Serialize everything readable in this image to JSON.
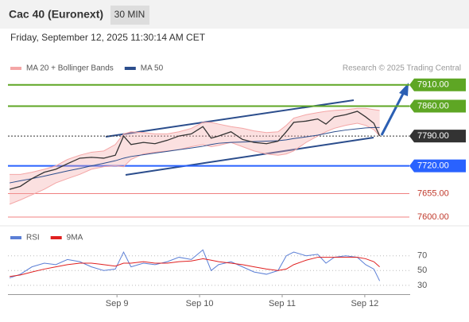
{
  "header": {
    "title": "Cac 40 (Euronext)",
    "interval": "30 MIN",
    "timestamp": "Friday, September 12, 2025 11:30:14 AM CET",
    "credit": "Research © 2025 Trading Central"
  },
  "chart_data": [
    {
      "type": "line",
      "x": [
        7.7,
        7.83,
        7.97,
        8.12,
        8.26,
        8.4,
        8.55,
        8.69,
        8.84,
        8.98,
        9.08,
        9.17,
        9.32,
        9.46,
        9.61,
        9.75,
        9.9,
        10.04,
        10.14,
        10.23,
        10.38,
        10.52,
        10.66,
        10.81,
        10.95,
        11.05,
        11.14,
        11.29,
        11.43,
        11.53,
        11.63,
        11.77,
        11.91,
        12.01,
        12.11,
        12.18
      ],
      "values": [
        7665,
        7672,
        7690,
        7705,
        7712,
        7725,
        7738,
        7740,
        7738,
        7745,
        7790,
        7770,
        7775,
        7772,
        7780,
        7790,
        7795,
        7812,
        7785,
        7790,
        7800,
        7782,
        7775,
        7772,
        7778,
        7800,
        7822,
        7825,
        7830,
        7818,
        7835,
        7840,
        7848,
        7835,
        7820,
        7790
      ],
      "color": "#333333",
      "series": [
        {
          "name": "MA 20 + Bollinger Bands",
          "color": "#f4a6a6",
          "upper": [
            7700,
            7700,
            7705,
            7712,
            7720,
            7735,
            7745,
            7752,
            7755,
            7770,
            7795,
            7800,
            7798,
            7795,
            7795,
            7800,
            7808,
            7822,
            7822,
            7818,
            7812,
            7808,
            7802,
            7798,
            7800,
            7815,
            7832,
            7840,
            7845,
            7848,
            7850,
            7852,
            7855,
            7855,
            7852,
            7850
          ],
          "lower": [
            7630,
            7640,
            7652,
            7665,
            7680,
            7690,
            7700,
            7712,
            7718,
            7720,
            7718,
            7735,
            7748,
            7752,
            7755,
            7758,
            7765,
            7770,
            7765,
            7768,
            7775,
            7765,
            7755,
            7748,
            7745,
            7748,
            7755,
            7775,
            7790,
            7800,
            7808,
            7815,
            7820,
            7815,
            7805,
            7790
          ]
        },
        {
          "name": "MA 50",
          "color": "#2b4d8c",
          "values": [
            7680,
            7685,
            7690,
            7696,
            7702,
            7708,
            7714,
            7720,
            7726,
            7732,
            7738,
            7742,
            7746,
            7750,
            7754,
            7758,
            7762,
            7766,
            7770,
            7773,
            7775,
            7776,
            7777,
            7778,
            7779,
            7781,
            7784,
            7788,
            7792,
            7796,
            7800,
            7804,
            7807,
            7809,
            7810,
            7810
          ]
        }
      ],
      "levels": [
        {
          "value": 7910,
          "label": "7910.00",
          "color": "#5ea624",
          "style": "box"
        },
        {
          "value": 7860,
          "label": "7860.00",
          "color": "#5ea624",
          "style": "box"
        },
        {
          "value": 7790,
          "label": "7790.00",
          "color": "#333333",
          "style": "box"
        },
        {
          "value": 7720,
          "label": "7720.00",
          "color": "#2962ff",
          "style": "box"
        },
        {
          "value": 7655,
          "label": "7655.00",
          "color": "#f08080",
          "style": "text"
        },
        {
          "value": 7600,
          "label": "7600.00",
          "color": "#f08080",
          "style": "text"
        }
      ],
      "xlim": [
        7.68,
        12.54
      ],
      "ylim": [
        7585,
        7930
      ]
    },
    {
      "type": "line",
      "x": [
        7.7,
        7.83,
        7.97,
        8.12,
        8.26,
        8.4,
        8.55,
        8.69,
        8.84,
        8.98,
        9.08,
        9.17,
        9.32,
        9.46,
        9.61,
        9.75,
        9.9,
        10.04,
        10.14,
        10.23,
        10.38,
        10.52,
        10.66,
        10.81,
        10.95,
        11.05,
        11.14,
        11.29,
        11.43,
        11.53,
        11.63,
        11.77,
        11.91,
        12.01,
        12.11,
        12.18
      ],
      "series": [
        {
          "name": "RSI",
          "color": "#5b7fd6",
          "values": [
            40,
            45,
            55,
            60,
            58,
            65,
            62,
            55,
            50,
            52,
            75,
            55,
            60,
            58,
            62,
            68,
            65,
            78,
            50,
            58,
            62,
            55,
            48,
            45,
            50,
            70,
            75,
            70,
            72,
            60,
            68,
            70,
            68,
            58,
            52,
            36
          ]
        },
        {
          "name": "9MA",
          "color": "#e02020",
          "values": [
            42,
            44,
            48,
            52,
            55,
            58,
            60,
            60,
            58,
            56,
            60,
            60,
            62,
            60,
            60,
            62,
            63,
            66,
            64,
            62,
            60,
            58,
            55,
            52,
            50,
            52,
            58,
            64,
            68,
            68,
            68,
            68,
            68,
            66,
            62,
            55
          ]
        }
      ],
      "xlim": [
        7.68,
        12.54
      ],
      "ylim": [
        18,
        88
      ],
      "yticks": [
        70,
        50,
        30
      ],
      "xticks": [
        {
          "value": 9,
          "label": "Sep 9"
        },
        {
          "value": 10,
          "label": "Sep 10"
        },
        {
          "value": 11,
          "label": "Sep 11"
        },
        {
          "value": 12,
          "label": "Sep 12"
        }
      ]
    }
  ]
}
